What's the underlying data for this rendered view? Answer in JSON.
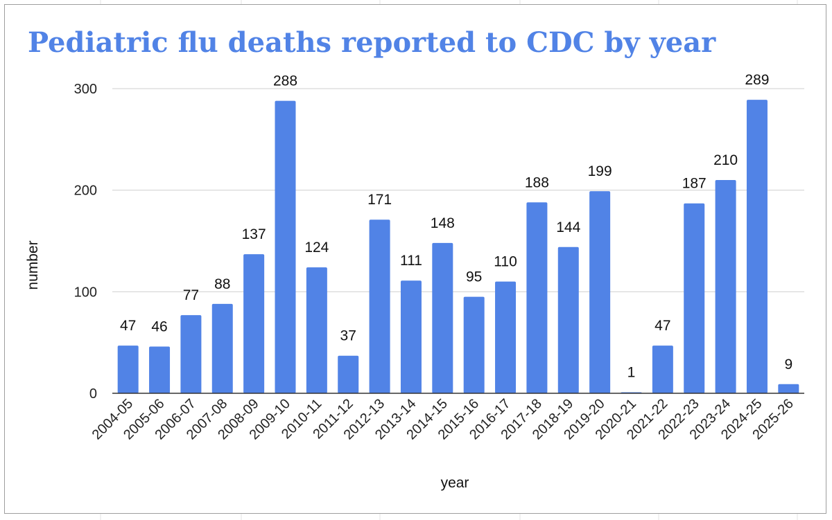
{
  "chart_data": {
    "type": "bar",
    "title": "Pediatric flu deaths reported to CDC by year",
    "xlabel": "year",
    "ylabel": "number",
    "categories": [
      "2004-05",
      "2005-06",
      "2006-07",
      "2007-08",
      "2008-09",
      "2009-10",
      "2010-11",
      "2011-12",
      "2012-13",
      "2013-14",
      "2014-15",
      "2015-16",
      "2016-17",
      "2017-18",
      "2018-19",
      "2019-20",
      "2020-21",
      "2021-22",
      "2022-23",
      "2023-24",
      "2024-25",
      "2025-26"
    ],
    "values": [
      47,
      46,
      77,
      88,
      137,
      288,
      124,
      37,
      171,
      111,
      148,
      95,
      110,
      188,
      144,
      199,
      1,
      47,
      187,
      210,
      289,
      9
    ],
    "ylim": [
      0,
      300
    ],
    "yticks": [
      0,
      100,
      200,
      300
    ],
    "grid": true,
    "legend": "none",
    "bar_color": "#5183e6"
  }
}
